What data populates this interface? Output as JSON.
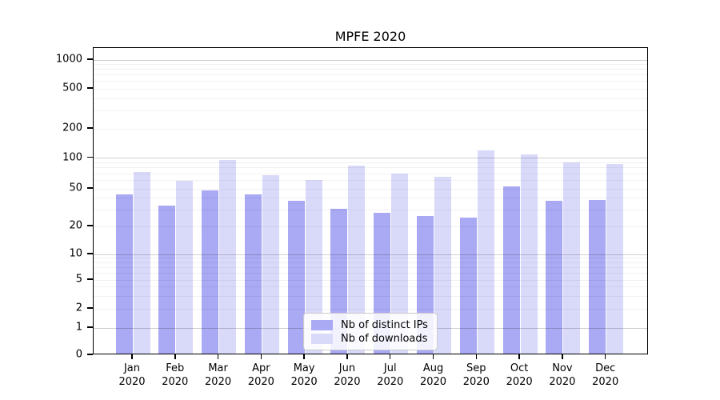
{
  "chart_data": {
    "type": "bar",
    "title": "MPFE 2020",
    "categories": [
      "Jan",
      "Feb",
      "Mar",
      "Apr",
      "May",
      "Jun",
      "Jul",
      "Aug",
      "Sep",
      "Oct",
      "Nov",
      "Dec"
    ],
    "category_year": "2020",
    "series": [
      {
        "name": "Nb of distinct IPs",
        "color": "#a9a9f4",
        "values": [
          44,
          33,
          48,
          44,
          37,
          31,
          28,
          26,
          25,
          53,
          37,
          38
        ]
      },
      {
        "name": "Nb of downloads",
        "color": "#d9d9fa",
        "values": [
          73,
          60,
          95,
          68,
          61,
          84,
          70,
          66,
          120,
          108,
          91,
          87
        ]
      }
    ],
    "yscale": "symlog (log above 1, linear 0-1)",
    "yticks": [
      0,
      1,
      2,
      5,
      10,
      20,
      50,
      100,
      200,
      500,
      1000
    ],
    "ylim": [
      0,
      1300
    ],
    "xlabel": "",
    "ylabel": "",
    "grid": "horizontal major (1,10,100,1000) + minor (2-9 per decade)",
    "legend_position": "lower center"
  },
  "colors": {
    "bar_ips": "#a9a9f4",
    "bar_downloads": "#d9d9fa",
    "grid_major": "#cfcfcf",
    "grid_minor": "#f0f0f0",
    "spine": "#000000",
    "background": "#ffffff"
  }
}
